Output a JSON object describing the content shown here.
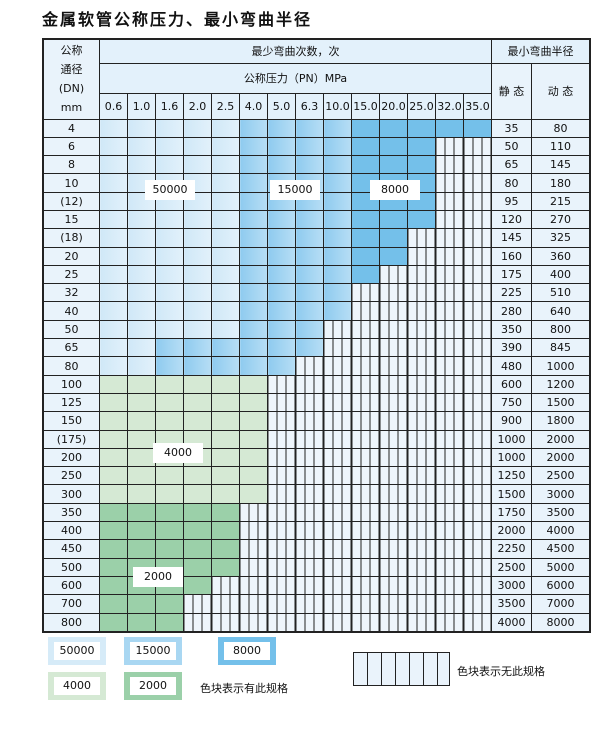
{
  "title": "金属软管公称压力、最小弯曲半径",
  "header": {
    "dn_label": [
      "公称",
      "通径",
      "(DN)",
      "mm"
    ],
    "cycles_label": "最少弯曲次数，次",
    "pressure_label": "公称压力（PN）MPa",
    "radius_label": "最小弯曲半径",
    "static_label": "静 态",
    "dynamic_label": "动 态",
    "pressures": [
      "0.6",
      "1.0",
      "1.6",
      "2.0",
      "2.5",
      "4.0",
      "5.0",
      "6.3",
      "10.0",
      "15.0",
      "20.0",
      "25.0",
      "32.0",
      "35.0"
    ]
  },
  "colors": {
    "50000": "#d6ebf8",
    "15000": "#9fd2f0",
    "8000": "#74c0ea",
    "4000": "#d5e9d4",
    "2000": "#9bd0a9",
    "empty": "#eef5fb"
  },
  "rows": [
    {
      "dn": "4",
      "static": "35",
      "dynamic": "80",
      "segments": [
        [
          "50000",
          5
        ],
        [
          "15000",
          4
        ],
        [
          "8000",
          5
        ]
      ]
    },
    {
      "dn": "6",
      "static": "50",
      "dynamic": "110",
      "segments": [
        [
          "50000",
          5
        ],
        [
          "15000",
          4
        ],
        [
          "8000",
          3
        ]
      ]
    },
    {
      "dn": "8",
      "static": "65",
      "dynamic": "145",
      "segments": [
        [
          "50000",
          5
        ],
        [
          "15000",
          4
        ],
        [
          "8000",
          3
        ]
      ]
    },
    {
      "dn": "10",
      "static": "80",
      "dynamic": "180",
      "segments": [
        [
          "50000",
          5
        ],
        [
          "15000",
          4
        ],
        [
          "8000",
          3
        ]
      ]
    },
    {
      "dn": "(12)",
      "static": "95",
      "dynamic": "215",
      "segments": [
        [
          "50000",
          5
        ],
        [
          "15000",
          4
        ],
        [
          "8000",
          3
        ]
      ]
    },
    {
      "dn": "15",
      "static": "120",
      "dynamic": "270",
      "segments": [
        [
          "50000",
          5
        ],
        [
          "15000",
          4
        ],
        [
          "8000",
          3
        ]
      ]
    },
    {
      "dn": "(18)",
      "static": "145",
      "dynamic": "325",
      "segments": [
        [
          "50000",
          5
        ],
        [
          "15000",
          4
        ],
        [
          "8000",
          2
        ]
      ]
    },
    {
      "dn": "20",
      "static": "160",
      "dynamic": "360",
      "segments": [
        [
          "50000",
          5
        ],
        [
          "15000",
          4
        ],
        [
          "8000",
          2
        ]
      ]
    },
    {
      "dn": "25",
      "static": "175",
      "dynamic": "400",
      "segments": [
        [
          "50000",
          5
        ],
        [
          "15000",
          4
        ],
        [
          "8000",
          1
        ]
      ]
    },
    {
      "dn": "32",
      "static": "225",
      "dynamic": "510",
      "segments": [
        [
          "50000",
          5
        ],
        [
          "15000",
          4
        ]
      ]
    },
    {
      "dn": "40",
      "static": "280",
      "dynamic": "640",
      "segments": [
        [
          "50000",
          5
        ],
        [
          "15000",
          4
        ]
      ]
    },
    {
      "dn": "50",
      "static": "350",
      "dynamic": "800",
      "segments": [
        [
          "50000",
          5
        ],
        [
          "15000",
          3
        ]
      ]
    },
    {
      "dn": "65",
      "static": "390",
      "dynamic": "845",
      "segments": [
        [
          "50000",
          2
        ],
        [
          "15000",
          6
        ]
      ]
    },
    {
      "dn": "80",
      "static": "480",
      "dynamic": "1000",
      "segments": [
        [
          "50000",
          2
        ],
        [
          "15000",
          5
        ]
      ]
    },
    {
      "dn": "100",
      "static": "600",
      "dynamic": "1200",
      "segments": [
        [
          "4000",
          6
        ]
      ]
    },
    {
      "dn": "125",
      "static": "750",
      "dynamic": "1500",
      "segments": [
        [
          "4000",
          6
        ]
      ]
    },
    {
      "dn": "150",
      "static": "900",
      "dynamic": "1800",
      "segments": [
        [
          "4000",
          6
        ]
      ]
    },
    {
      "dn": "(175)",
      "static": "1000",
      "dynamic": "2000",
      "segments": [
        [
          "4000",
          6
        ]
      ]
    },
    {
      "dn": "200",
      "static": "1000",
      "dynamic": "2000",
      "segments": [
        [
          "4000",
          6
        ]
      ]
    },
    {
      "dn": "250",
      "static": "1250",
      "dynamic": "2500",
      "segments": [
        [
          "4000",
          6
        ]
      ]
    },
    {
      "dn": "300",
      "static": "1500",
      "dynamic": "3000",
      "segments": [
        [
          "4000",
          6
        ]
      ]
    },
    {
      "dn": "350",
      "static": "1750",
      "dynamic": "3500",
      "segments": [
        [
          "2000",
          5
        ]
      ]
    },
    {
      "dn": "400",
      "static": "2000",
      "dynamic": "4000",
      "segments": [
        [
          "2000",
          5
        ]
      ]
    },
    {
      "dn": "450",
      "static": "2250",
      "dynamic": "4500",
      "segments": [
        [
          "2000",
          5
        ]
      ]
    },
    {
      "dn": "500",
      "static": "2500",
      "dynamic": "5000",
      "segments": [
        [
          "2000",
          5
        ]
      ]
    },
    {
      "dn": "600",
      "static": "3000",
      "dynamic": "6000",
      "segments": [
        [
          "2000",
          4
        ]
      ]
    },
    {
      "dn": "700",
      "static": "3500",
      "dynamic": "7000",
      "segments": [
        [
          "2000",
          3
        ]
      ]
    },
    {
      "dn": "800",
      "static": "4000",
      "dynamic": "8000",
      "segments": [
        [
          "2000",
          3
        ]
      ]
    }
  ],
  "region_labels": [
    "50000",
    "15000",
    "8000",
    "4000",
    "2000"
  ],
  "legend": {
    "items": [
      "50000",
      "15000",
      "8000",
      "4000",
      "2000"
    ],
    "has_spec_text": "色块表示有此规格",
    "no_spec_text": "色块表示无此规格"
  }
}
